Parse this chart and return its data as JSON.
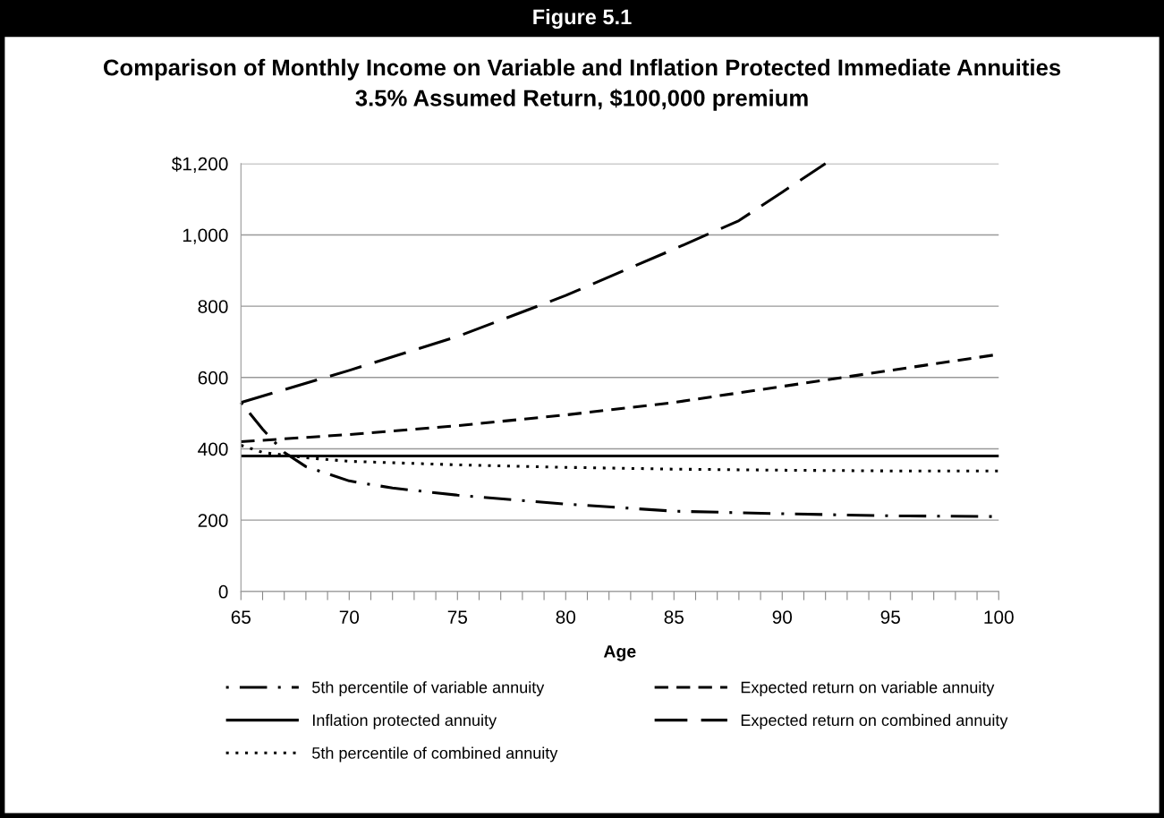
{
  "chart_data": {
    "type": "line",
    "title": "Comparison of Monthly Income on Variable and Inflation Protected Immediate Annuities",
    "subtitle": "3.5% Assumed Return, $100,000 premium",
    "annotations": [
      "Figure 5.1"
    ],
    "xlabel": "Age",
    "xlim": [
      65,
      100
    ],
    "xticks": [
      65,
      {
        "value": 66,
        "label": null
      },
      {
        "value": 67,
        "label": null
      },
      {
        "value": 68,
        "label": null
      },
      {
        "value": 69,
        "label": null
      },
      70,
      {
        "value": 71,
        "label": null
      },
      {
        "value": 72,
        "label": null
      },
      {
        "value": 73,
        "label": null
      },
      {
        "value": 74,
        "label": null
      },
      75,
      {
        "value": 76,
        "label": null
      },
      {
        "value": 77,
        "label": null
      },
      {
        "value": 78,
        "label": null
      },
      {
        "value": 79,
        "label": null
      },
      80,
      {
        "value": 81,
        "label": null
      },
      {
        "value": 82,
        "label": null
      },
      {
        "value": 83,
        "label": null
      },
      {
        "value": 84,
        "label": null
      },
      85,
      {
        "value": 86,
        "label": null
      },
      {
        "value": 87,
        "label": null
      },
      {
        "value": 88,
        "label": null
      },
      {
        "value": 89,
        "label": null
      },
      90,
      {
        "value": 91,
        "label": null
      },
      {
        "value": 92,
        "label": null
      },
      {
        "value": 93,
        "label": null
      },
      {
        "value": 94,
        "label": null
      },
      95,
      {
        "value": 96,
        "label": null
      },
      {
        "value": 97,
        "label": null
      },
      {
        "value": 98,
        "label": null
      },
      {
        "value": 99,
        "label": null
      },
      100
    ],
    "ylim": [
      0,
      1200
    ],
    "yticks": [
      0,
      200,
      400,
      600,
      800,
      {
        "value": 1000,
        "label": "1,000"
      },
      {
        "value": 1200,
        "label": "$1,200"
      }
    ],
    "grid": "y",
    "legend": "bottom",
    "series": [
      {
        "name": "5th percentile of variable annuity",
        "color": "#000000",
        "line_style": "dashdot",
        "x": [
          65,
          66,
          67,
          68,
          70,
          72,
          75,
          80,
          85,
          90,
          95,
          100
        ],
        "values": [
          530,
          455,
          390,
          350,
          310,
          290,
          270,
          245,
          225,
          218,
          212,
          210
        ]
      },
      {
        "name": "Inflation protected annuity",
        "color": "#000000",
        "line_style": "solid",
        "x": [
          65,
          100
        ],
        "values": [
          380,
          380
        ]
      },
      {
        "name": "5th percentile of combined annuity",
        "color": "#000000",
        "line_style": "dotted",
        "x": [
          65,
          66,
          68,
          70,
          75,
          80,
          85,
          90,
          95,
          100
        ],
        "values": [
          410,
          390,
          375,
          365,
          355,
          348,
          343,
          340,
          338,
          338
        ]
      },
      {
        "name": "Expected return on variable annuity",
        "color": "#000000",
        "line_style": "dashed",
        "x": [
          65,
          70,
          75,
          80,
          85,
          90,
          95,
          100
        ],
        "values": [
          420,
          440,
          465,
          495,
          530,
          575,
          620,
          665
        ]
      },
      {
        "name": "Expected return on combined annuity",
        "color": "#000000",
        "line_style": "longdash",
        "x": [
          65,
          70,
          75,
          80,
          85,
          88,
          90,
          92
        ],
        "values": [
          530,
          620,
          715,
          830,
          960,
          1040,
          1120,
          1200
        ]
      }
    ]
  }
}
